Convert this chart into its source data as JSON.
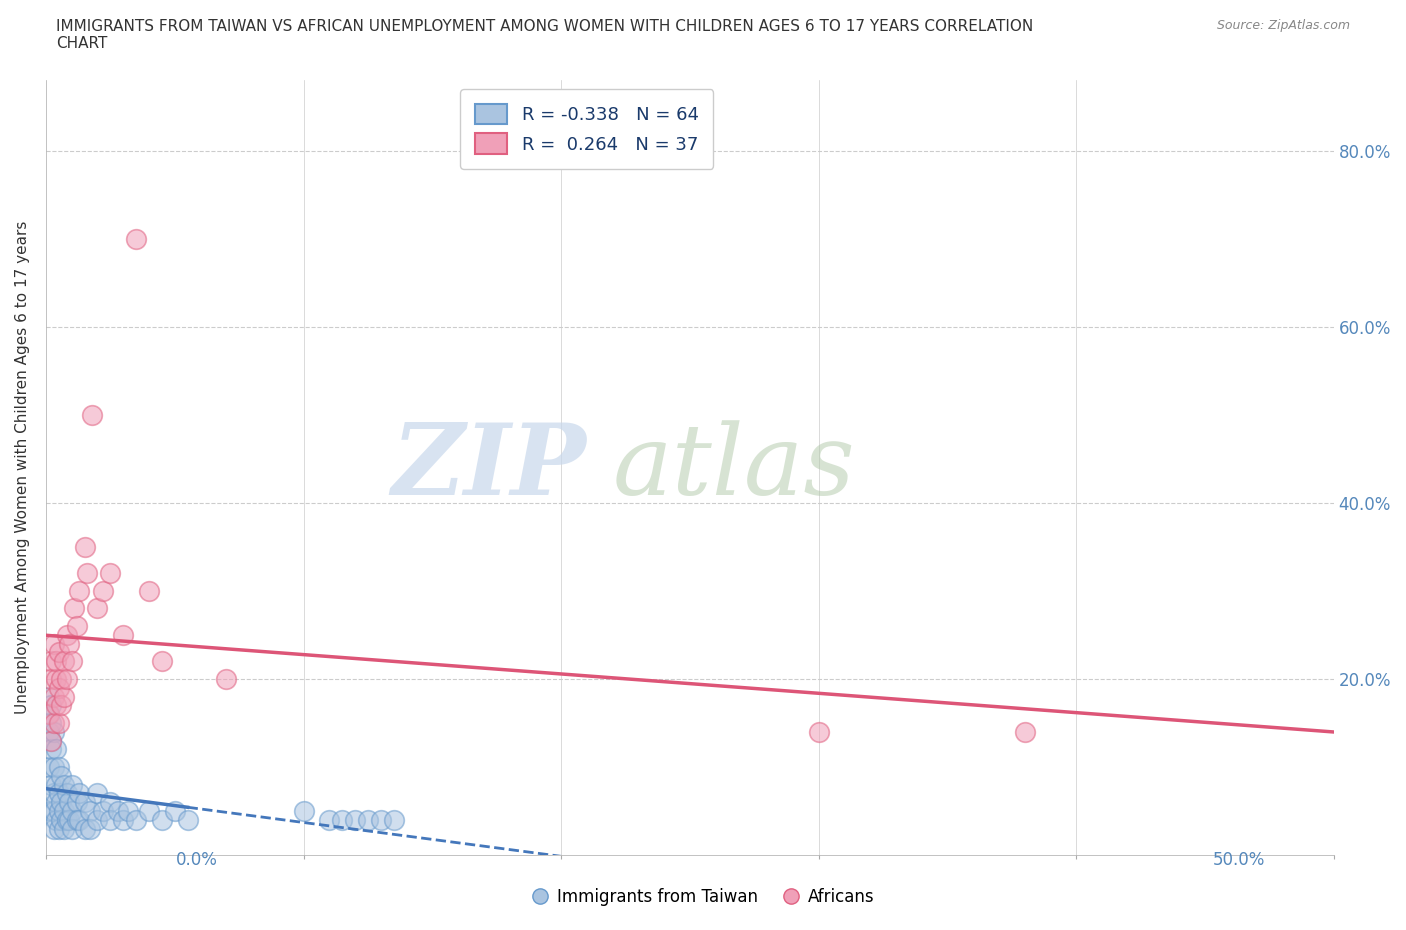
{
  "title": "IMMIGRANTS FROM TAIWAN VS AFRICAN UNEMPLOYMENT AMONG WOMEN WITH CHILDREN AGES 6 TO 17 YEARS CORRELATION\nCHART",
  "source": "Source: ZipAtlas.com",
  "xlabel_bottom_left": "0.0%",
  "xlabel_bottom_right": "50.0%",
  "ylabel": "Unemployment Among Women with Children Ages 6 to 17 years",
  "legend_bottom": [
    "Immigrants from Taiwan",
    "Africans"
  ],
  "legend_box": {
    "taiwan_label": "R = -0.338   N = 64",
    "african_label": "R =  0.264   N = 37"
  },
  "xlim": [
    0.0,
    0.5
  ],
  "ylim": [
    0.0,
    0.88
  ],
  "yticks": [
    0.0,
    0.2,
    0.4,
    0.6,
    0.8
  ],
  "ytick_labels": [
    "",
    "20.0%",
    "40.0%",
    "60.0%",
    "80.0%"
  ],
  "watermark_zip": "ZIP",
  "watermark_atlas": "atlas",
  "taiwan_color": "#aac4e0",
  "african_color": "#f0a0b8",
  "taiwan_edge_color": "#6699cc",
  "african_edge_color": "#e06080",
  "taiwan_line_color": "#4477bb",
  "african_line_color": "#dd5577",
  "taiwan_scatter": [
    [
      0.001,
      0.16
    ],
    [
      0.001,
      0.18
    ],
    [
      0.001,
      0.14
    ],
    [
      0.001,
      0.1
    ],
    [
      0.002,
      0.17
    ],
    [
      0.002,
      0.15
    ],
    [
      0.002,
      0.13
    ],
    [
      0.002,
      0.08
    ],
    [
      0.002,
      0.05
    ],
    [
      0.002,
      0.12
    ],
    [
      0.003,
      0.14
    ],
    [
      0.003,
      0.1
    ],
    [
      0.003,
      0.07
    ],
    [
      0.003,
      0.05
    ],
    [
      0.003,
      0.03
    ],
    [
      0.004,
      0.12
    ],
    [
      0.004,
      0.08
    ],
    [
      0.004,
      0.06
    ],
    [
      0.004,
      0.04
    ],
    [
      0.005,
      0.1
    ],
    [
      0.005,
      0.07
    ],
    [
      0.005,
      0.05
    ],
    [
      0.005,
      0.03
    ],
    [
      0.006,
      0.09
    ],
    [
      0.006,
      0.06
    ],
    [
      0.006,
      0.04
    ],
    [
      0.007,
      0.08
    ],
    [
      0.007,
      0.05
    ],
    [
      0.007,
      0.03
    ],
    [
      0.008,
      0.07
    ],
    [
      0.008,
      0.04
    ],
    [
      0.009,
      0.06
    ],
    [
      0.009,
      0.04
    ],
    [
      0.01,
      0.08
    ],
    [
      0.01,
      0.05
    ],
    [
      0.01,
      0.03
    ],
    [
      0.012,
      0.06
    ],
    [
      0.012,
      0.04
    ],
    [
      0.013,
      0.07
    ],
    [
      0.013,
      0.04
    ],
    [
      0.015,
      0.06
    ],
    [
      0.015,
      0.03
    ],
    [
      0.017,
      0.05
    ],
    [
      0.017,
      0.03
    ],
    [
      0.02,
      0.07
    ],
    [
      0.02,
      0.04
    ],
    [
      0.022,
      0.05
    ],
    [
      0.025,
      0.06
    ],
    [
      0.025,
      0.04
    ],
    [
      0.028,
      0.05
    ],
    [
      0.03,
      0.04
    ],
    [
      0.032,
      0.05
    ],
    [
      0.035,
      0.04
    ],
    [
      0.04,
      0.05
    ],
    [
      0.045,
      0.04
    ],
    [
      0.05,
      0.05
    ],
    [
      0.055,
      0.04
    ],
    [
      0.1,
      0.05
    ],
    [
      0.11,
      0.04
    ],
    [
      0.115,
      0.04
    ],
    [
      0.12,
      0.04
    ],
    [
      0.125,
      0.04
    ],
    [
      0.13,
      0.04
    ],
    [
      0.135,
      0.04
    ]
  ],
  "african_scatter": [
    [
      0.001,
      0.16
    ],
    [
      0.002,
      0.13
    ],
    [
      0.002,
      0.22
    ],
    [
      0.002,
      0.2
    ],
    [
      0.003,
      0.18
    ],
    [
      0.003,
      0.15
    ],
    [
      0.003,
      0.24
    ],
    [
      0.004,
      0.2
    ],
    [
      0.004,
      0.22
    ],
    [
      0.004,
      0.17
    ],
    [
      0.005,
      0.19
    ],
    [
      0.005,
      0.23
    ],
    [
      0.005,
      0.15
    ],
    [
      0.006,
      0.17
    ],
    [
      0.006,
      0.2
    ],
    [
      0.007,
      0.22
    ],
    [
      0.007,
      0.18
    ],
    [
      0.008,
      0.2
    ],
    [
      0.008,
      0.25
    ],
    [
      0.009,
      0.24
    ],
    [
      0.01,
      0.22
    ],
    [
      0.011,
      0.28
    ],
    [
      0.012,
      0.26
    ],
    [
      0.013,
      0.3
    ],
    [
      0.015,
      0.35
    ],
    [
      0.016,
      0.32
    ],
    [
      0.018,
      0.5
    ],
    [
      0.02,
      0.28
    ],
    [
      0.022,
      0.3
    ],
    [
      0.025,
      0.32
    ],
    [
      0.03,
      0.25
    ],
    [
      0.035,
      0.7
    ],
    [
      0.04,
      0.3
    ],
    [
      0.045,
      0.22
    ],
    [
      0.07,
      0.2
    ],
    [
      0.3,
      0.14
    ],
    [
      0.38,
      0.14
    ]
  ]
}
